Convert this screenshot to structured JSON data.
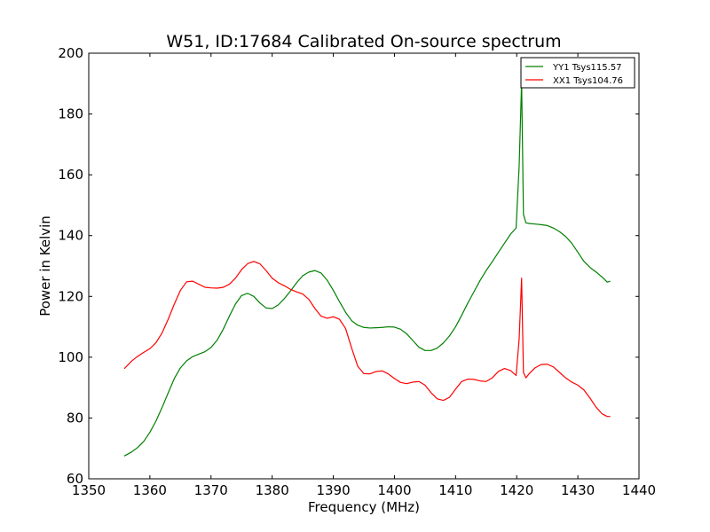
{
  "chart_data": {
    "type": "line",
    "title": "W51, ID:17684 Calibrated On-source spectrum",
    "xlabel": "Frequency (MHz)",
    "ylabel": "Power in Kelvin",
    "xlim": [
      1350,
      1440
    ],
    "ylim": [
      60,
      200
    ],
    "xticks": [
      1350,
      1360,
      1370,
      1380,
      1390,
      1400,
      1410,
      1420,
      1430,
      1440
    ],
    "yticks": [
      60,
      80,
      100,
      120,
      140,
      160,
      180,
      200
    ],
    "grid": false,
    "legend_position": "top-right",
    "series": [
      {
        "name": "YY1 Tsys115.57",
        "color": "#008000",
        "x": [
          1355.8,
          1357.0,
          1358.0,
          1359.0,
          1360.0,
          1361.0,
          1362.0,
          1363.0,
          1364.0,
          1365.0,
          1366.0,
          1367.0,
          1368.0,
          1369.0,
          1370.0,
          1371.0,
          1372.0,
          1373.0,
          1374.0,
          1375.0,
          1376.0,
          1377.0,
          1378.0,
          1379.0,
          1380.0,
          1381.0,
          1382.0,
          1383.0,
          1384.0,
          1385.0,
          1386.0,
          1387.0,
          1388.0,
          1389.0,
          1390.0,
          1391.0,
          1392.0,
          1393.0,
          1394.0,
          1395.0,
          1396.0,
          1397.0,
          1398.0,
          1399.0,
          1400.0,
          1401.0,
          1402.0,
          1403.0,
          1404.0,
          1405.0,
          1406.0,
          1407.0,
          1408.0,
          1409.0,
          1410.0,
          1411.0,
          1412.0,
          1413.0,
          1414.0,
          1415.0,
          1416.0,
          1417.0,
          1418.0,
          1419.0,
          1419.9,
          1420.4,
          1420.8,
          1421.1,
          1421.5,
          1422.0,
          1423.0,
          1424.0,
          1425.0,
          1426.0,
          1427.0,
          1428.0,
          1429.0,
          1430.0,
          1431.0,
          1432.0,
          1433.0,
          1434.0,
          1434.8,
          1435.3
        ],
        "y": [
          67.5,
          68.8,
          70.3,
          72.3,
          75.3,
          79.0,
          83.5,
          88.3,
          93.0,
          96.5,
          98.8,
          100.2,
          101.0,
          101.8,
          103.2,
          105.6,
          109.2,
          113.5,
          117.5,
          120.3,
          121.0,
          120.0,
          117.8,
          116.2,
          116.0,
          117.2,
          119.3,
          121.8,
          124.5,
          126.8,
          128.0,
          128.5,
          127.7,
          125.3,
          122.0,
          118.3,
          114.8,
          112.0,
          110.5,
          109.8,
          109.6,
          109.7,
          109.8,
          110.0,
          109.9,
          109.2,
          107.7,
          105.5,
          103.3,
          102.2,
          102.2,
          103.0,
          104.7,
          107.0,
          110.0,
          113.8,
          117.8,
          121.5,
          125.2,
          128.5,
          131.4,
          134.5,
          137.5,
          140.5,
          142.5,
          163.0,
          190.5,
          147.0,
          144.2,
          144.0,
          143.8,
          143.6,
          143.3,
          142.5,
          141.3,
          139.7,
          137.5,
          134.5,
          131.5,
          129.5,
          128.0,
          126.3,
          124.7,
          125.0
        ]
      },
      {
        "name": "XX1 Tsys104.76",
        "color": "#ff0000",
        "x": [
          1355.8,
          1357.0,
          1358.0,
          1359.0,
          1360.0,
          1361.0,
          1362.0,
          1363.0,
          1364.0,
          1365.0,
          1366.0,
          1367.0,
          1368.0,
          1369.0,
          1370.0,
          1371.0,
          1372.0,
          1373.0,
          1374.0,
          1375.0,
          1376.0,
          1377.0,
          1378.0,
          1379.0,
          1380.0,
          1381.0,
          1382.0,
          1383.0,
          1384.0,
          1385.0,
          1386.0,
          1387.0,
          1388.0,
          1389.0,
          1390.0,
          1391.0,
          1392.0,
          1393.0,
          1394.0,
          1395.0,
          1396.0,
          1397.0,
          1398.0,
          1399.0,
          1400.0,
          1401.0,
          1402.0,
          1403.0,
          1404.0,
          1405.0,
          1406.0,
          1407.0,
          1408.0,
          1409.0,
          1410.0,
          1411.0,
          1412.0,
          1413.0,
          1414.0,
          1415.0,
          1416.0,
          1417.0,
          1418.0,
          1419.0,
          1419.9,
          1420.4,
          1420.8,
          1421.1,
          1421.5,
          1422.0,
          1423.0,
          1424.0,
          1425.0,
          1426.0,
          1427.0,
          1428.0,
          1429.0,
          1430.0,
          1431.0,
          1432.0,
          1433.0,
          1434.0,
          1434.8,
          1435.3
        ],
        "y": [
          96.2,
          98.7,
          100.3,
          101.6,
          102.8,
          104.8,
          108.0,
          112.5,
          117.5,
          122.0,
          124.8,
          125.0,
          124.0,
          123.0,
          122.8,
          122.7,
          123.0,
          124.0,
          126.0,
          128.8,
          130.8,
          131.5,
          130.7,
          128.5,
          126.0,
          124.5,
          123.5,
          122.3,
          121.5,
          120.8,
          119.0,
          116.0,
          113.5,
          112.8,
          113.3,
          112.5,
          109.5,
          103.0,
          97.0,
          94.6,
          94.5,
          95.3,
          95.5,
          94.5,
          93.0,
          91.7,
          91.3,
          91.8,
          92.0,
          90.8,
          88.3,
          86.3,
          85.8,
          86.8,
          89.5,
          92.0,
          92.8,
          92.7,
          92.2,
          92.0,
          93.2,
          95.3,
          96.3,
          95.6,
          94.0,
          106.0,
          126.0,
          95.0,
          93.2,
          94.5,
          96.5,
          97.6,
          97.7,
          96.8,
          95.0,
          93.2,
          91.8,
          90.8,
          89.2,
          86.5,
          83.5,
          81.3,
          80.5,
          80.5
        ]
      }
    ]
  }
}
